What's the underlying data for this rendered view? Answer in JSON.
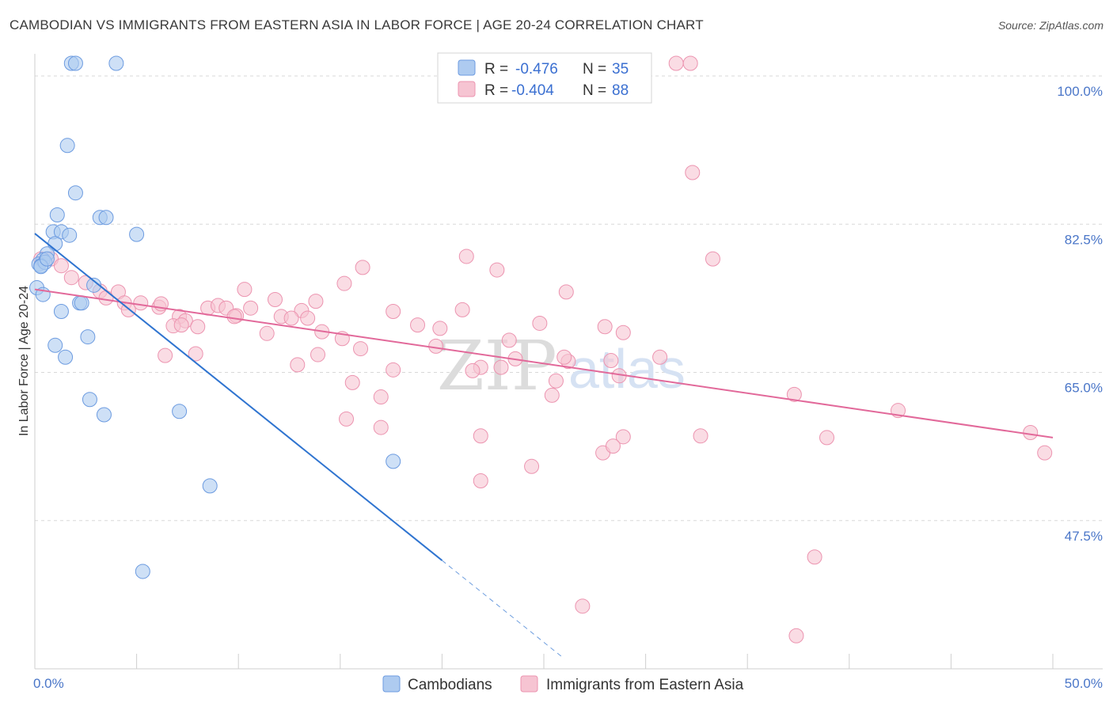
{
  "header": {
    "title": "CAMBODIAN VS IMMIGRANTS FROM EASTERN ASIA IN LABOR FORCE | AGE 20-24 CORRELATION CHART",
    "source": "Source: ZipAtlas.com"
  },
  "legend": {
    "row1": {
      "r_label": "R =",
      "r_value": "-0.476",
      "n_label": "N =",
      "n_value": "35"
    },
    "row2": {
      "r_label": "R =",
      "r_value": "-0.404",
      "n_label": "N =",
      "n_value": "88"
    }
  },
  "bottom_legend": {
    "series1": "Cambodians",
    "series2": "Immigrants from Eastern Asia"
  },
  "watermark": {
    "zip": "ZIP",
    "atlas": "atlas"
  },
  "colors": {
    "cambodian_fill": "#aecbf0",
    "cambodian_stroke": "#6c9be0",
    "cambodian_line": "#2f74d0",
    "eastasia_fill": "#f6c4d2",
    "eastasia_stroke": "#ec94b0",
    "eastasia_line": "#e2699a",
    "grid": "#d8d8d8",
    "tick_text": "#4a76c8"
  },
  "chart_data": {
    "type": "scatter",
    "title": "CAMBODIAN VS IMMIGRANTS FROM EASTERN ASIA IN LABOR FORCE | AGE 20-24 CORRELATION CHART",
    "xlabel": "",
    "ylabel": "In Labor Force | Age 20-24",
    "xlim": [
      0,
      50
    ],
    "ylim": [
      30,
      101.5
    ],
    "x_tick_labels": [
      "0.0%",
      "50.0%"
    ],
    "y_ticks": [
      47.5,
      65.0,
      82.5,
      100.0
    ],
    "y_tick_labels": [
      "47.5%",
      "65.0%",
      "82.5%",
      "100.0%"
    ],
    "legend_position": "top-center",
    "grid": true,
    "series": [
      {
        "name": "Cambodians",
        "r": -0.476,
        "n": 35,
        "points": [
          [
            1.8,
            101.5
          ],
          [
            2.0,
            101.5
          ],
          [
            4.0,
            101.5
          ],
          [
            1.6,
            91.8
          ],
          [
            2.0,
            86.2
          ],
          [
            1.1,
            83.6
          ],
          [
            3.2,
            83.3
          ],
          [
            3.5,
            83.3
          ],
          [
            0.9,
            81.6
          ],
          [
            1.3,
            81.6
          ],
          [
            1.7,
            81.2
          ],
          [
            5.0,
            81.3
          ],
          [
            1.0,
            80.2
          ],
          [
            0.6,
            79.0
          ],
          [
            0.4,
            78.3
          ],
          [
            0.2,
            77.8
          ],
          [
            0.3,
            77.6
          ],
          [
            0.5,
            78.0
          ],
          [
            0.1,
            75.0
          ],
          [
            0.4,
            74.2
          ],
          [
            2.9,
            75.3
          ],
          [
            2.2,
            73.2
          ],
          [
            2.3,
            73.2
          ],
          [
            1.3,
            72.2
          ],
          [
            1.0,
            68.2
          ],
          [
            1.5,
            66.8
          ],
          [
            2.6,
            69.2
          ],
          [
            2.7,
            61.8
          ],
          [
            3.4,
            60.0
          ],
          [
            7.1,
            60.4
          ],
          [
            17.6,
            54.5
          ],
          [
            8.6,
            51.6
          ],
          [
            5.3,
            41.5
          ],
          [
            0.3,
            77.5
          ],
          [
            0.6,
            78.4
          ]
        ],
        "trend": {
          "x": [
            0,
            20
          ],
          "y": [
            81.4,
            42.8
          ]
        },
        "trend_dashed": {
          "x": [
            20,
            26
          ],
          "y": [
            42.8,
            31.2
          ]
        }
      },
      {
        "name": "Immigrants from Eastern Asia",
        "r": -0.404,
        "n": 88,
        "points": [
          [
            31.5,
            101.5
          ],
          [
            32.2,
            101.5
          ],
          [
            32.3,
            88.6
          ],
          [
            33.3,
            78.4
          ],
          [
            21.2,
            78.7
          ],
          [
            16.1,
            77.4
          ],
          [
            22.7,
            77.1
          ],
          [
            0.3,
            78.4
          ],
          [
            0.8,
            78.4
          ],
          [
            1.3,
            77.6
          ],
          [
            1.8,
            76.2
          ],
          [
            2.5,
            75.6
          ],
          [
            3.2,
            74.6
          ],
          [
            3.5,
            73.8
          ],
          [
            4.1,
            74.5
          ],
          [
            4.4,
            73.2
          ],
          [
            5.2,
            73.2
          ],
          [
            6.1,
            72.7
          ],
          [
            10.3,
            74.8
          ],
          [
            11.8,
            73.6
          ],
          [
            13.8,
            73.4
          ],
          [
            15.2,
            75.5
          ],
          [
            26.1,
            74.5
          ],
          [
            4.6,
            72.4
          ],
          [
            6.2,
            73.1
          ],
          [
            8.5,
            72.6
          ],
          [
            9.0,
            72.9
          ],
          [
            9.4,
            72.6
          ],
          [
            9.9,
            71.7
          ],
          [
            10.6,
            72.6
          ],
          [
            12.1,
            71.6
          ],
          [
            13.1,
            72.3
          ],
          [
            7.1,
            71.6
          ],
          [
            7.4,
            71.1
          ],
          [
            6.8,
            70.5
          ],
          [
            7.2,
            70.6
          ],
          [
            8.0,
            70.4
          ],
          [
            12.6,
            71.4
          ],
          [
            13.4,
            71.4
          ],
          [
            14.1,
            69.8
          ],
          [
            11.4,
            69.6
          ],
          [
            17.6,
            72.2
          ],
          [
            19.9,
            70.2
          ],
          [
            21.0,
            72.4
          ],
          [
            18.8,
            70.6
          ],
          [
            24.8,
            70.8
          ],
          [
            28.0,
            70.4
          ],
          [
            28.9,
            69.7
          ],
          [
            15.1,
            69.0
          ],
          [
            16.0,
            67.8
          ],
          [
            19.7,
            68.1
          ],
          [
            23.3,
            68.8
          ],
          [
            23.6,
            66.6
          ],
          [
            26.2,
            66.3
          ],
          [
            26.0,
            66.8
          ],
          [
            28.3,
            66.4
          ],
          [
            28.7,
            64.6
          ],
          [
            30.7,
            66.8
          ],
          [
            13.9,
            67.1
          ],
          [
            21.9,
            65.6
          ],
          [
            21.5,
            65.2
          ],
          [
            22.9,
            65.6
          ],
          [
            17.6,
            65.3
          ],
          [
            6.4,
            67.0
          ],
          [
            17.0,
            62.1
          ],
          [
            15.6,
            63.8
          ],
          [
            7.9,
            67.2
          ],
          [
            12.9,
            65.9
          ],
          [
            9.8,
            71.6
          ],
          [
            25.6,
            64.0
          ],
          [
            25.4,
            62.3
          ],
          [
            37.3,
            62.4
          ],
          [
            42.4,
            60.5
          ],
          [
            15.3,
            59.5
          ],
          [
            17.0,
            58.5
          ],
          [
            21.9,
            57.5
          ],
          [
            28.9,
            57.4
          ],
          [
            32.7,
            57.5
          ],
          [
            38.9,
            57.3
          ],
          [
            27.9,
            55.5
          ],
          [
            28.4,
            56.3
          ],
          [
            21.9,
            52.2
          ],
          [
            24.4,
            53.9
          ],
          [
            48.9,
            57.9
          ],
          [
            49.6,
            55.5
          ],
          [
            37.4,
            33.9
          ],
          [
            38.3,
            43.2
          ],
          [
            26.9,
            37.4
          ]
        ],
        "trend": {
          "x": [
            0,
            50
          ],
          "y": [
            74.8,
            57.3
          ]
        }
      }
    ]
  }
}
